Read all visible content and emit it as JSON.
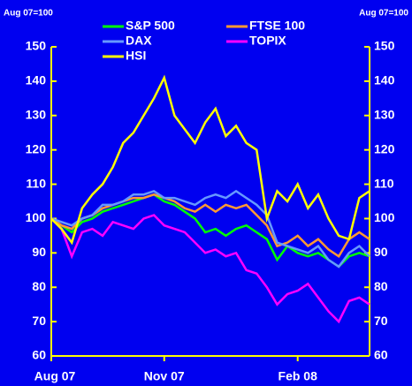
{
  "chart_data": {
    "type": "line",
    "y_label_left": "Aug 07=100",
    "y_label_right": "Aug 07=100",
    "x": [
      0,
      1,
      2,
      3,
      4,
      5,
      6,
      7,
      8,
      9,
      10,
      11,
      12,
      13,
      14,
      15,
      16,
      17,
      18,
      19,
      20,
      21,
      22,
      23,
      24,
      25,
      26,
      27,
      28,
      29,
      30,
      31
    ],
    "xlim": [
      0,
      31
    ],
    "xticks": [
      {
        "value": 0,
        "label": "Aug 07"
      },
      {
        "value": 11,
        "label": "Nov 07"
      },
      {
        "value": 24,
        "label": "Feb 08"
      }
    ],
    "ylim": [
      60,
      150
    ],
    "yticks": [
      60,
      70,
      80,
      90,
      100,
      110,
      120,
      130,
      140,
      150
    ],
    "y2lim": [
      60,
      150
    ],
    "y2ticks": [
      60,
      70,
      80,
      90,
      100,
      110,
      120,
      130,
      140,
      150
    ],
    "axis_color": "#ffff00",
    "series": [
      {
        "name": "S&P 500",
        "color": "#00ff00",
        "values": [
          100,
          98,
          96,
          99,
          100,
          102,
          103,
          104,
          105,
          106,
          107,
          105,
          104,
          102,
          100,
          96,
          97,
          95,
          97,
          98,
          96,
          94,
          88,
          92,
          90,
          89,
          90,
          88,
          86,
          89,
          90,
          89
        ]
      },
      {
        "name": "FTSE 100",
        "color": "#ff9933",
        "values": [
          100,
          98,
          97,
          100,
          101,
          103,
          104,
          105,
          106,
          106,
          107,
          106,
          105,
          103,
          102,
          104,
          102,
          104,
          103,
          104,
          101,
          98,
          92,
          93,
          95,
          92,
          94,
          91,
          89,
          94,
          96,
          94
        ]
      },
      {
        "name": "DAX",
        "color": "#6699ff",
        "values": [
          100,
          99,
          98,
          100,
          101,
          104,
          104,
          105,
          107,
          107,
          108,
          106,
          106,
          105,
          104,
          106,
          107,
          106,
          108,
          106,
          104,
          101,
          93,
          92,
          91,
          90,
          92,
          88,
          86,
          90,
          92,
          89
        ]
      },
      {
        "name": "TOPIX",
        "color": "#ff00ff",
        "values": [
          100,
          97,
          89,
          96,
          97,
          95,
          99,
          98,
          97,
          100,
          101,
          98,
          97,
          96,
          93,
          90,
          91,
          89,
          90,
          85,
          84,
          80,
          75,
          78,
          79,
          81,
          77,
          73,
          70,
          76,
          77,
          75
        ]
      },
      {
        "name": "HSI",
        "color": "#ffff00",
        "values": [
          100,
          97,
          93,
          103,
          107,
          110,
          115,
          122,
          125,
          130,
          135,
          141,
          130,
          126,
          122,
          128,
          132,
          124,
          127,
          122,
          120,
          100,
          108,
          105,
          110,
          103,
          107,
          100,
          95,
          94,
          106,
          108
        ]
      }
    ]
  }
}
